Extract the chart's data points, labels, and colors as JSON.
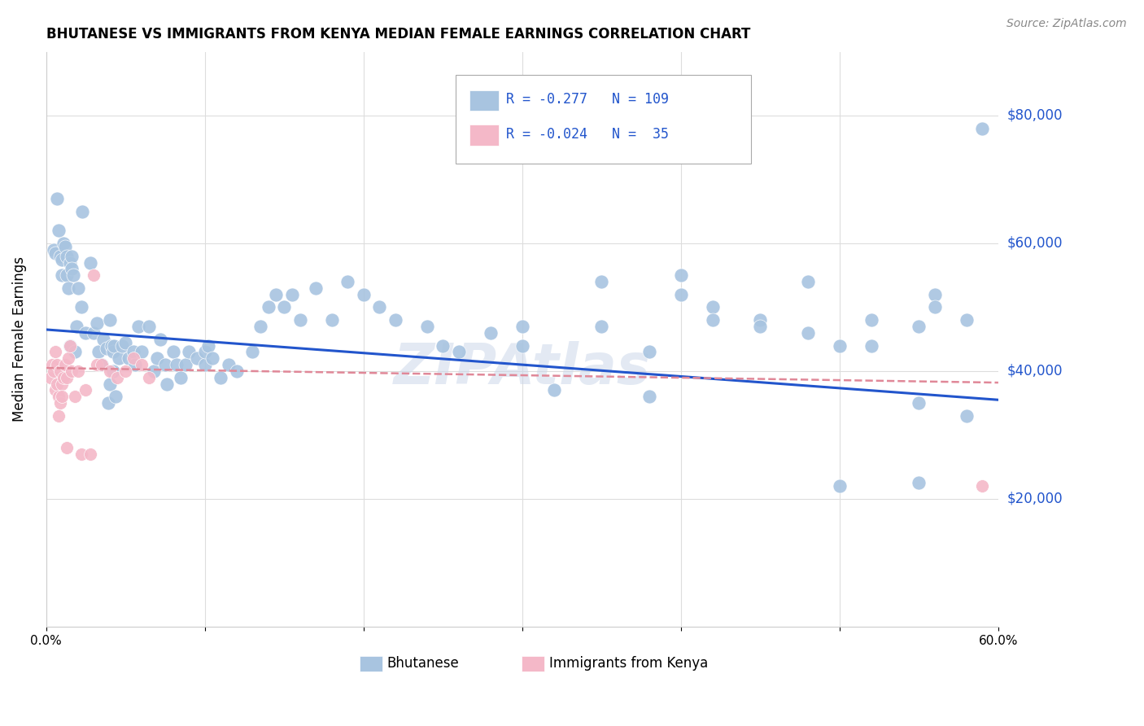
{
  "title": "BHUTANESE VS IMMIGRANTS FROM KENYA MEDIAN FEMALE EARNINGS CORRELATION CHART",
  "source": "Source: ZipAtlas.com",
  "ylabel": "Median Female Earnings",
  "xlim": [
    0,
    0.6
  ],
  "ylim": [
    0,
    90000
  ],
  "yticks": [
    20000,
    40000,
    60000,
    80000
  ],
  "ytick_labels": [
    "$20,000",
    "$40,000",
    "$60,000",
    "$80,000"
  ],
  "xticks": [
    0.0,
    0.1,
    0.2,
    0.3,
    0.4,
    0.5,
    0.6
  ],
  "xtick_labels": [
    "0.0%",
    "",
    "",
    "",
    "",
    "",
    "60.0%"
  ],
  "bg_color": "#ffffff",
  "grid_color": "#dddddd",
  "blue_color": "#a8c4e0",
  "pink_color": "#f4b8c8",
  "blue_line_color": "#2255cc",
  "pink_line_color": "#e08898",
  "label_color": "#2255cc",
  "watermark": "ZIPAtlas",
  "legend_R1": "-0.277",
  "legend_N1": "109",
  "legend_R2": "-0.024",
  "legend_N2": " 35",
  "blue_trend_x": [
    0.0,
    0.6
  ],
  "blue_trend_y": [
    46500,
    35500
  ],
  "pink_trend_x": [
    0.0,
    0.6
  ],
  "pink_trend_y": [
    40500,
    38200
  ],
  "bhutanese_x": [
    0.005,
    0.006,
    0.007,
    0.008,
    0.009,
    0.01,
    0.01,
    0.011,
    0.012,
    0.013,
    0.013,
    0.014,
    0.015,
    0.015,
    0.016,
    0.016,
    0.017,
    0.018,
    0.019,
    0.02,
    0.022,
    0.023,
    0.025,
    0.028,
    0.03,
    0.032,
    0.033,
    0.035,
    0.036,
    0.038,
    0.039,
    0.04,
    0.04,
    0.041,
    0.042,
    0.042,
    0.043,
    0.044,
    0.046,
    0.048,
    0.05,
    0.052,
    0.055,
    0.056,
    0.058,
    0.06,
    0.065,
    0.068,
    0.07,
    0.072,
    0.075,
    0.076,
    0.08,
    0.082,
    0.085,
    0.088,
    0.09,
    0.095,
    0.1,
    0.1,
    0.102,
    0.105,
    0.11,
    0.115,
    0.12,
    0.13,
    0.135,
    0.14,
    0.145,
    0.15,
    0.155,
    0.16,
    0.17,
    0.18,
    0.19,
    0.2,
    0.21,
    0.22,
    0.24,
    0.25,
    0.26,
    0.28,
    0.3,
    0.32,
    0.35,
    0.38,
    0.4,
    0.42,
    0.45,
    0.48,
    0.5,
    0.52,
    0.55,
    0.56,
    0.58,
    0.3,
    0.35,
    0.4,
    0.42,
    0.45,
    0.48,
    0.5,
    0.52,
    0.55,
    0.56,
    0.38,
    0.55,
    0.58,
    0.59
  ],
  "bhutanese_y": [
    59000,
    58500,
    67000,
    62000,
    58000,
    57500,
    55000,
    60000,
    59500,
    58000,
    55000,
    53000,
    57000,
    44000,
    58000,
    56000,
    55000,
    43000,
    47000,
    53000,
    50000,
    65000,
    46000,
    57000,
    46000,
    47500,
    43000,
    41000,
    45000,
    43500,
    35000,
    48000,
    38000,
    44000,
    43000,
    40000,
    44000,
    36000,
    42000,
    44000,
    44500,
    42000,
    43000,
    41000,
    47000,
    43000,
    47000,
    40000,
    42000,
    45000,
    41000,
    38000,
    43000,
    41000,
    39000,
    41000,
    43000,
    42000,
    41000,
    43000,
    44000,
    42000,
    39000,
    41000,
    40000,
    43000,
    47000,
    50000,
    52000,
    50000,
    52000,
    48000,
    53000,
    48000,
    54000,
    52000,
    50000,
    48000,
    47000,
    44000,
    43000,
    46000,
    44000,
    37000,
    47000,
    43000,
    55000,
    50000,
    48000,
    54000,
    22000,
    44000,
    22500,
    52000,
    48000,
    47000,
    54000,
    52000,
    48000,
    47000,
    46000,
    44000,
    48000,
    47000,
    50000,
    36000,
    35000,
    33000,
    78000
  ],
  "kenya_x": [
    0.003,
    0.004,
    0.005,
    0.006,
    0.006,
    0.007,
    0.007,
    0.008,
    0.008,
    0.009,
    0.009,
    0.01,
    0.01,
    0.011,
    0.012,
    0.013,
    0.013,
    0.014,
    0.015,
    0.016,
    0.018,
    0.02,
    0.022,
    0.025,
    0.028,
    0.03,
    0.032,
    0.035,
    0.04,
    0.045,
    0.05,
    0.055,
    0.06,
    0.065,
    0.59
  ],
  "kenya_y": [
    39000,
    41000,
    40000,
    43000,
    37000,
    41000,
    38000,
    36000,
    33000,
    35000,
    40000,
    38000,
    36000,
    39000,
    41000,
    39000,
    28000,
    42000,
    44000,
    40000,
    36000,
    40000,
    27000,
    37000,
    27000,
    55000,
    41000,
    41000,
    40000,
    39000,
    40000,
    42000,
    41000,
    39000,
    22000
  ]
}
